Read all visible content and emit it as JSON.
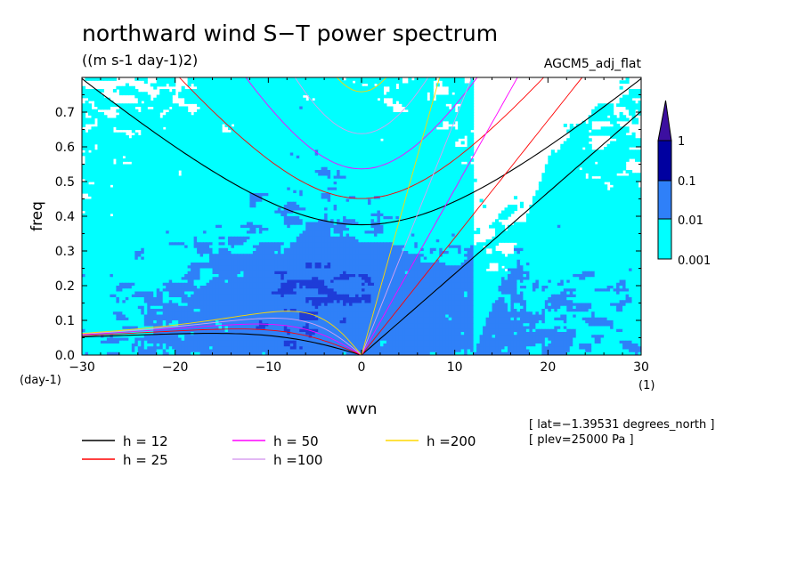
{
  "chart_data": {
    "type": "heatmap",
    "title": "northward wind S−T power spectrum",
    "units": "((m s-1 day-1)2)",
    "model_label": "AGCM5_adj_flat",
    "xlabel": "wvn",
    "ylabel": "freq",
    "x_unit": "(1)",
    "y_unit": "(day-1)",
    "xlim": [
      -30,
      30
    ],
    "ylim": [
      0,
      0.8
    ],
    "x_ticks": [
      -30,
      -20,
      -10,
      0,
      10,
      20,
      30
    ],
    "x_tick_labels": [
      "−30",
      "−20",
      "−10",
      "0",
      "10",
      "20",
      "30"
    ],
    "y_ticks": [
      0,
      0.1,
      0.2,
      0.3,
      0.4,
      0.5,
      0.6,
      0.7
    ],
    "y_tick_labels": [
      "0.0",
      "0.1",
      "0.2",
      "0.3",
      "0.4",
      "0.5",
      "0.6",
      "0.7"
    ],
    "colorbar": {
      "levels": [
        0.001,
        0.01,
        0.1,
        1
      ],
      "labels": [
        "0.001",
        "0.01",
        "0.1",
        "1"
      ],
      "colors": [
        "#00ffff",
        "#2f80f8",
        "#1e3cd8",
        "#0000a0",
        "#3c0fa0"
      ]
    },
    "dispersion_curves": [
      {
        "h": 12,
        "label": "h = 12",
        "color": "#000000"
      },
      {
        "h": 25,
        "label": "h = 25",
        "color": "#ff0000"
      },
      {
        "h": 50,
        "label": "h = 50",
        "color": "#ff00ff"
      },
      {
        "h": 100,
        "label": "h =100",
        "color": "#d8a0f0"
      },
      {
        "h": 200,
        "label": "h =200",
        "color": "#ffd800"
      }
    ],
    "annotations": [
      "[ lat=−1.39531 degrees_north ]",
      "[ plev=25000 Pa ]"
    ]
  }
}
